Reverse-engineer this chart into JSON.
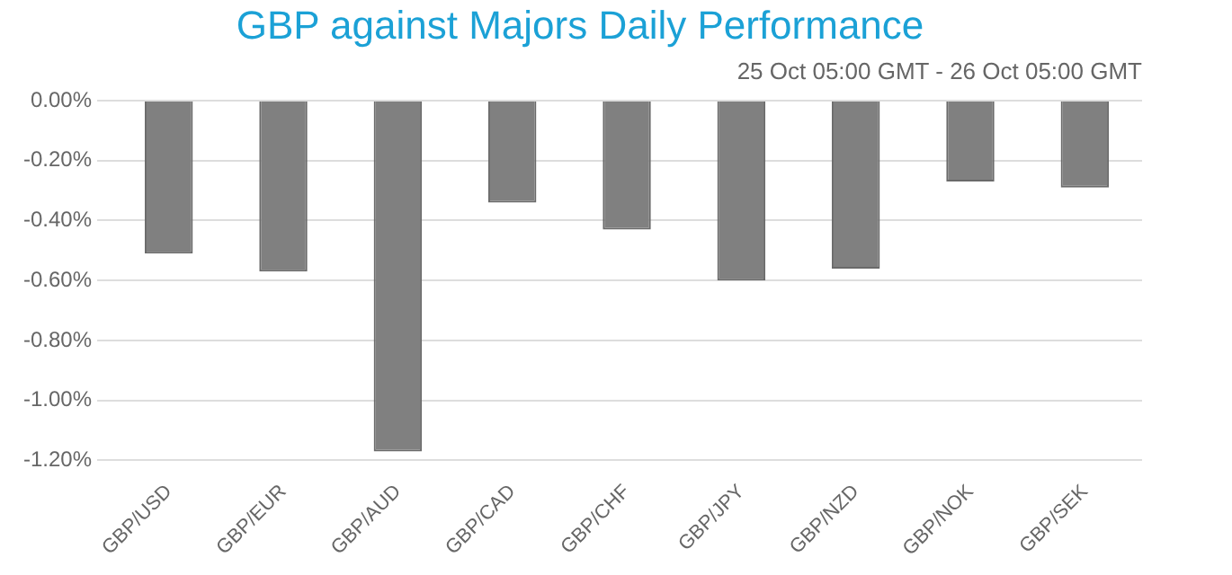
{
  "chart_data": {
    "type": "bar",
    "title": "GBP against Majors Daily Performance",
    "subtitle": "25 Oct 05:00 GMT - 26 Oct 05:00 GMT",
    "categories": [
      "GBP/USD",
      "GBP/EUR",
      "GBP/AUD",
      "GBP/CAD",
      "GBP/CHF",
      "GBP/JPY",
      "GBP/NZD",
      "GBP/NOK",
      "GBP/SEK"
    ],
    "values": [
      -0.51,
      -0.57,
      -1.17,
      -0.34,
      -0.43,
      -0.6,
      -0.56,
      -0.27,
      -0.29
    ],
    "color": "#808080",
    "ylim": [
      -1.2,
      0
    ],
    "yticks": [
      {
        "value": 0,
        "label": "0.00%"
      },
      {
        "value": -0.2,
        "label": "-0.20%"
      },
      {
        "value": -0.4,
        "label": "-0.40%"
      },
      {
        "value": -0.6,
        "label": "-0.60%"
      },
      {
        "value": -0.8,
        "label": "-0.80%"
      },
      {
        "value": -1,
        "label": "-1.00%"
      },
      {
        "value": -1.2,
        "label": "-1.20%"
      }
    ],
    "grid": "y",
    "legend": false
  }
}
